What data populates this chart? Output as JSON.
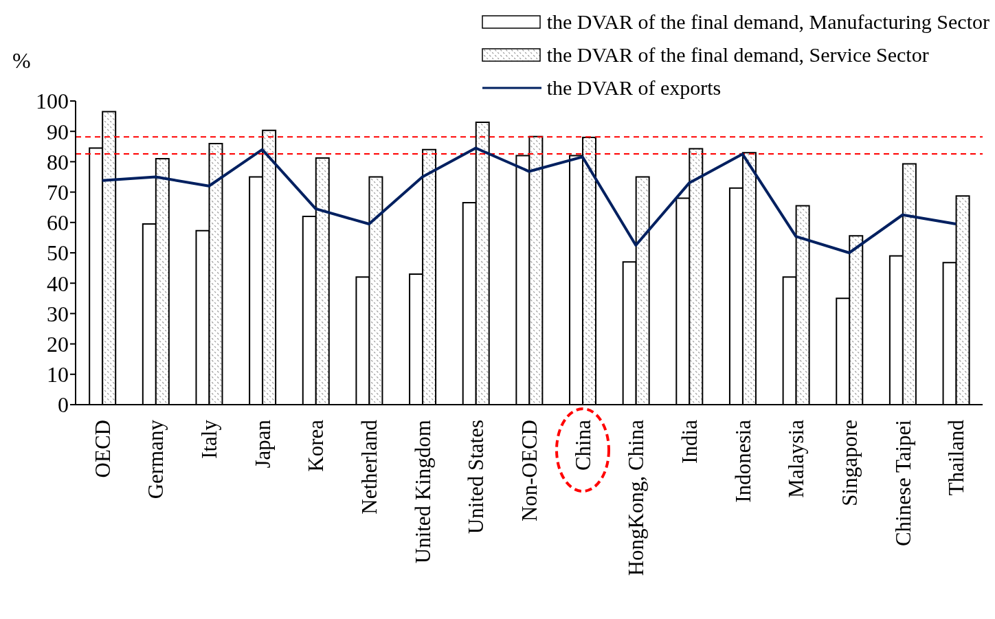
{
  "chart_data": {
    "type": "bar",
    "ylabel": "%",
    "legend": "top right",
    "categories": [
      "OECD",
      "Germany",
      "Italy",
      "Japan",
      "Korea",
      "Netherland",
      "United Kingdom",
      "United States",
      "Non-OECD",
      "China",
      "HongKong, China",
      "India",
      "Indonesia",
      "Malaysia",
      "Singapore",
      "Chinese Taipei",
      "Thailand"
    ],
    "series": [
      {
        "name": "the DVAR of the final demand, Manufacturing Sector",
        "color": "#ffffff",
        "values": [
          84.5,
          59.5,
          57.3,
          75,
          62,
          42,
          43,
          66.5,
          82,
          82,
          47,
          68,
          71.3,
          42,
          35,
          49,
          46.8
        ]
      },
      {
        "name": "the DVAR of the final demand, Service Sector",
        "color": "#000000",
        "values": [
          96.5,
          81,
          86,
          90.3,
          81.2,
          75,
          84,
          93,
          88.3,
          88,
          75,
          84.3,
          83,
          65.5,
          55.6,
          79.3,
          68.7
        ]
      },
      {
        "name": "the DVAR of exports",
        "type": "line",
        "color": "#002060",
        "values": [
          73.8,
          75,
          72,
          84,
          64.5,
          59.5,
          75,
          84.5,
          76.8,
          81.6,
          52.5,
          73,
          82.5,
          55.4,
          50,
          62.5,
          59.5
        ]
      }
    ],
    "ylim": [
      0,
      100
    ],
    "yticks": [
      0,
      10,
      20,
      30,
      40,
      50,
      60,
      70,
      80,
      90,
      100
    ],
    "ref_lines": [
      {
        "axis": "y",
        "value": 88.2,
        "color": "#ff0000",
        "line_style": "dashed"
      },
      {
        "axis": "y",
        "value": 82.6,
        "color": "#ff0000",
        "line_style": "dashed"
      }
    ]
  }
}
